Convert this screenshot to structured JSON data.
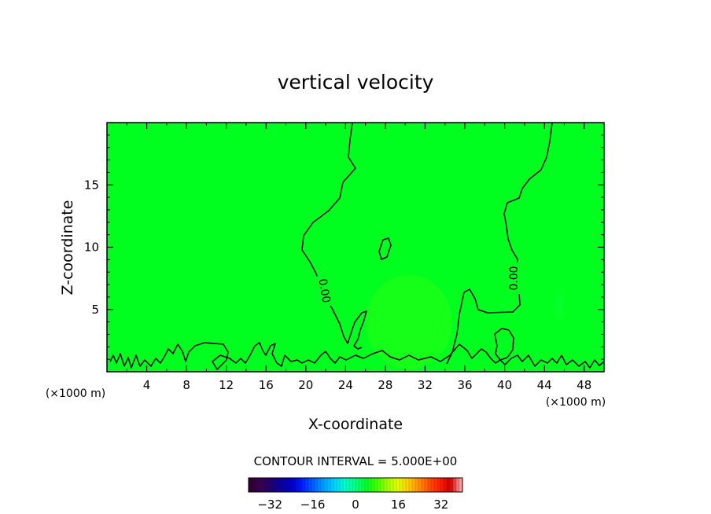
{
  "chart_data": {
    "type": "heatmap",
    "title": "vertical velocity",
    "xlabel": "X-coordinate",
    "ylabel": "Z-coordinate",
    "x_unit": "(×1000 m)",
    "y_unit": "(×1000 m)",
    "xlim": [
      0,
      50
    ],
    "ylim": [
      0,
      20
    ],
    "x_ticks": [
      4,
      8,
      12,
      16,
      20,
      24,
      28,
      32,
      36,
      40,
      44,
      48
    ],
    "y_ticks": [
      5,
      10,
      15
    ],
    "contour_label": "0.00",
    "contour_interval_text": "CONTOUR INTERVAL = 5.000E+00",
    "field_color": "#00ff1e",
    "colorbar": {
      "min": -40,
      "max": 40,
      "ticks": [
        -32,
        -16,
        0,
        16,
        32
      ],
      "colors": [
        "#300030",
        "#3a0050",
        "#200070",
        "#0a00a0",
        "#0000c8",
        "#0020ff",
        "#0060ff",
        "#00a0ff",
        "#00d0ff",
        "#00ffd0",
        "#00ff80",
        "#00ff30",
        "#40ff00",
        "#a0ff00",
        "#e0ff00",
        "#ffd000",
        "#ff9000",
        "#ff5000",
        "#ff2000",
        "#d00000",
        "#ffa0a0"
      ]
    }
  }
}
